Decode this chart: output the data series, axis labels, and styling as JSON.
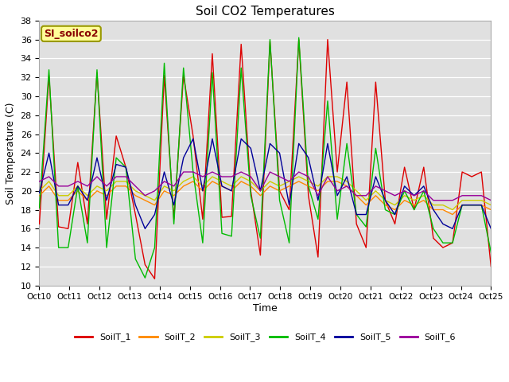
{
  "title": "Soil CO2 Temperatures",
  "xlabel": "Time",
  "ylabel": "Soil Temperature (C)",
  "ylim": [
    10,
    38
  ],
  "annotation": "SI_soilco2",
  "bg_color": "#e0e0e0",
  "x_tick_labels": [
    "Oct 10",
    "Oct 11",
    "Oct 12",
    "Oct 13",
    "Oct 14",
    "Oct 15",
    "Oct 16",
    "Oct 17",
    "Oct 18",
    "Oct 19",
    "Oct 20",
    "Oct 21",
    "Oct 22",
    "Oct 23",
    "Oct 24",
    "Oct 25"
  ],
  "series_names": [
    "SoilT_1",
    "SoilT_2",
    "SoilT_3",
    "SoilT_4",
    "SoilT_5",
    "SoilT_6"
  ],
  "series_colors": [
    "#dd0000",
    "#ff8800",
    "#cccc00",
    "#00bb00",
    "#000099",
    "#990099"
  ],
  "SoilT_1": [
    16.5,
    32.2,
    16.2,
    16.0,
    23.0,
    16.5,
    32.5,
    17.0,
    25.8,
    22.5,
    17.5,
    12.2,
    10.7,
    32.2,
    17.0,
    32.2,
    25.8,
    17.0,
    34.5,
    17.2,
    17.3,
    35.5,
    20.0,
    13.2,
    35.8,
    20.0,
    18.0,
    36.0,
    19.5,
    13.0,
    36.0,
    22.0,
    31.5,
    16.5,
    14.0,
    31.5,
    19.0,
    16.5,
    22.5,
    18.0,
    22.5,
    15.0,
    14.0,
    14.5,
    22.0,
    21.5,
    22.0,
    12.0
  ],
  "SoilT_2": [
    19.5,
    20.5,
    19.0,
    19.0,
    20.0,
    19.0,
    20.0,
    19.5,
    20.5,
    20.5,
    19.5,
    19.0,
    18.5,
    20.0,
    19.5,
    20.5,
    21.0,
    20.0,
    21.0,
    20.5,
    20.0,
    21.0,
    20.5,
    19.5,
    20.5,
    20.0,
    20.5,
    21.0,
    20.5,
    20.0,
    21.0,
    21.0,
    20.5,
    19.5,
    18.5,
    19.5,
    18.5,
    18.0,
    19.0,
    18.5,
    19.0,
    18.0,
    18.0,
    17.5,
    18.5,
    18.5,
    18.5,
    18.0
  ],
  "SoilT_3": [
    20.0,
    21.0,
    19.5,
    19.5,
    20.5,
    19.5,
    20.5,
    20.0,
    21.0,
    21.0,
    20.0,
    19.5,
    19.0,
    20.5,
    20.0,
    21.0,
    21.5,
    20.5,
    21.5,
    21.0,
    20.5,
    21.5,
    21.0,
    20.0,
    21.0,
    20.5,
    21.0,
    21.5,
    21.0,
    20.5,
    21.5,
    21.5,
    21.0,
    20.0,
    19.0,
    20.0,
    19.0,
    18.5,
    19.5,
    19.0,
    19.5,
    18.5,
    18.5,
    18.0,
    19.0,
    19.0,
    19.0,
    18.5
  ],
  "SoilT_4": [
    18.2,
    32.8,
    14.0,
    14.0,
    20.5,
    14.5,
    32.8,
    14.0,
    23.5,
    22.5,
    12.8,
    10.8,
    14.0,
    33.5,
    16.5,
    33.0,
    22.0,
    14.5,
    32.5,
    15.5,
    15.2,
    33.0,
    19.5,
    15.0,
    36.0,
    19.0,
    14.5,
    36.2,
    20.5,
    17.0,
    29.5,
    17.0,
    25.0,
    17.5,
    16.2,
    24.5,
    18.0,
    17.5,
    20.0,
    18.0,
    20.0,
    16.0,
    14.5,
    14.5,
    18.5,
    18.5,
    18.5,
    13.5
  ],
  "SoilT_5": [
    19.8,
    24.0,
    18.5,
    18.5,
    20.5,
    19.0,
    23.5,
    19.0,
    22.8,
    22.5,
    18.5,
    16.0,
    17.5,
    22.0,
    18.5,
    23.5,
    25.5,
    20.0,
    25.5,
    20.5,
    20.0,
    25.5,
    24.5,
    20.0,
    25.0,
    24.0,
    18.5,
    25.0,
    23.5,
    19.0,
    25.0,
    19.5,
    21.5,
    17.5,
    17.5,
    21.5,
    19.0,
    17.5,
    20.5,
    19.5,
    20.5,
    18.0,
    16.5,
    16.0,
    18.5,
    18.5,
    18.5,
    16.0
  ],
  "SoilT_6": [
    21.0,
    21.5,
    20.5,
    20.5,
    21.0,
    20.5,
    21.5,
    20.5,
    21.5,
    21.5,
    20.5,
    19.5,
    20.0,
    21.0,
    20.5,
    22.0,
    22.0,
    21.5,
    22.0,
    21.5,
    21.5,
    22.0,
    21.5,
    20.0,
    22.0,
    21.5,
    21.0,
    22.0,
    21.5,
    19.5,
    21.5,
    20.0,
    20.5,
    19.5,
    19.5,
    20.5,
    20.0,
    19.5,
    20.0,
    19.5,
    20.0,
    19.0,
    19.0,
    19.0,
    19.5,
    19.5,
    19.5,
    19.0
  ]
}
